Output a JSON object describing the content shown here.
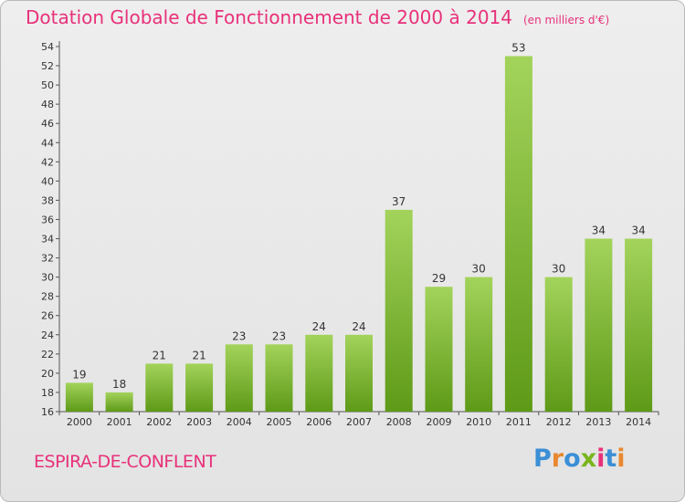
{
  "title": "Dotation Globale de Fonctionnement de 2000 à 2014",
  "unit": "(en milliers d'€)",
  "commune": "ESPIRA-DE-CONFLENT",
  "logo": {
    "text": "Proxiti",
    "letter_colors": [
      "#3b8fd6",
      "#e8882f",
      "#3b8fd6",
      "#7ab51d",
      "#e8317a",
      "#3b8fd6",
      "#e8882f"
    ]
  },
  "colors": {
    "accent": "#e8317a",
    "bar_light": "#a3d35b",
    "bar_dark": "#5e9a17",
    "axis_text": "#333333"
  },
  "chart_data": {
    "type": "bar",
    "title": "Dotation Globale de Fonctionnement de 2000 à 2014",
    "categories": [
      "2000",
      "2001",
      "2002",
      "2003",
      "2004",
      "2005",
      "2006",
      "2007",
      "2008",
      "2009",
      "2010",
      "2011",
      "2012",
      "2013",
      "2014"
    ],
    "values": [
      19,
      18,
      21,
      21,
      23,
      23,
      24,
      24,
      37,
      29,
      30,
      53,
      30,
      34,
      34
    ],
    "data_labels": [
      "19",
      "18",
      "21",
      "21",
      "23",
      "23",
      "24",
      "24",
      "37",
      "29",
      "30",
      "53",
      "30",
      "34",
      "34"
    ],
    "yticks": [
      "16",
      "18",
      "20",
      "22",
      "24",
      "26",
      "28",
      "30",
      "32",
      "34",
      "36",
      "38",
      "40",
      "42",
      "44",
      "46",
      "48",
      "50",
      "52",
      "54"
    ],
    "ylim": [
      16,
      54
    ],
    "grid": false,
    "legend": "none"
  }
}
